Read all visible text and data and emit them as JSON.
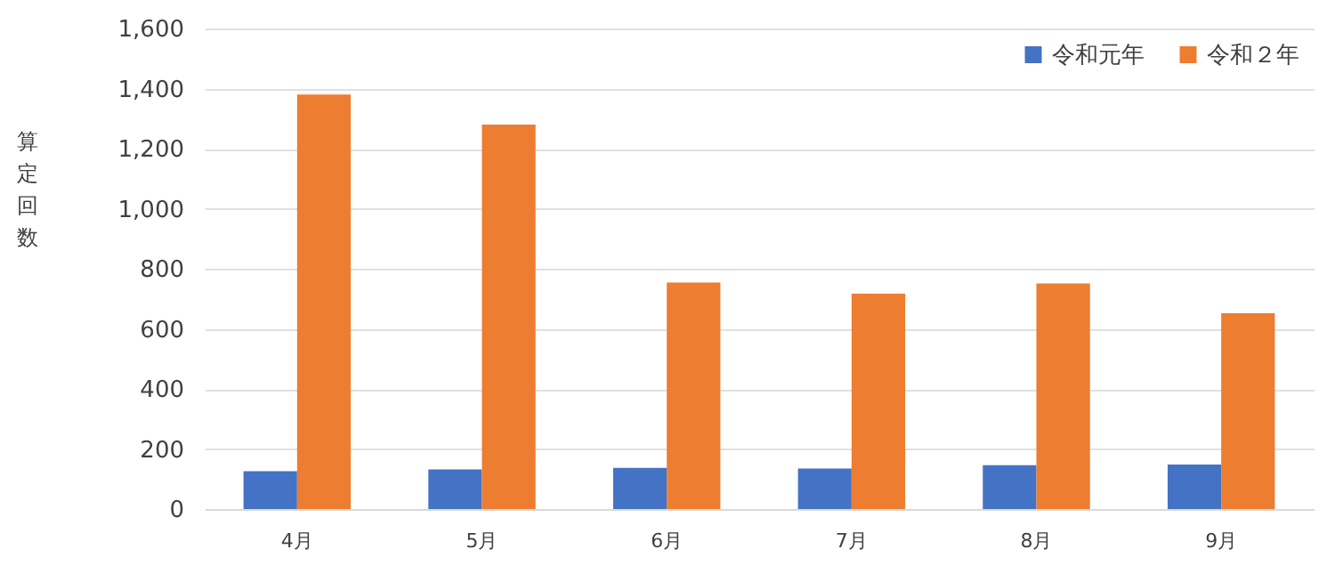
{
  "chart_data": {
    "type": "bar",
    "ylabel": "算定回数",
    "categories": [
      "4月",
      "5月",
      "6月",
      "7月",
      "8月",
      "9月"
    ],
    "series": [
      {
        "name": "令和元年",
        "color": "#4472c4",
        "values": [
          126,
          132,
          137,
          135,
          146,
          148
        ]
      },
      {
        "name": "令和２年",
        "color": "#ed7d31",
        "values": [
          1380,
          1280,
          754,
          717,
          751,
          652
        ]
      }
    ],
    "ylim": [
      0,
      1600
    ],
    "yticks": [
      0,
      200,
      400,
      600,
      800,
      {
        "value": 1000,
        "label": "1,000"
      },
      {
        "value": 1200,
        "label": "1,200"
      },
      {
        "value": 1400,
        "label": "1,400"
      },
      {
        "value": 1600,
        "label": "1,600"
      }
    ],
    "grid": "y",
    "legend": "top right"
  }
}
